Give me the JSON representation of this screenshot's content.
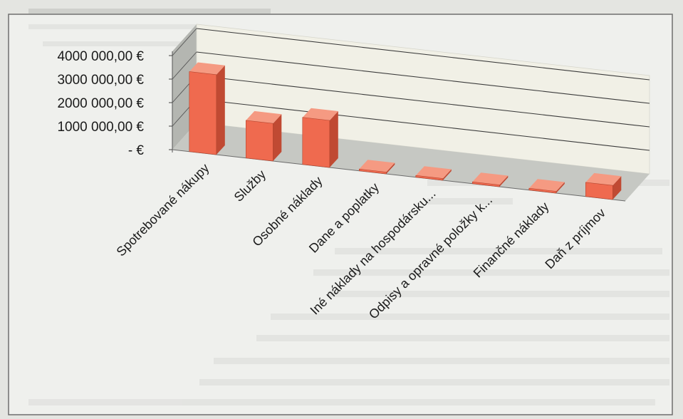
{
  "chart_data": {
    "type": "bar",
    "categories": [
      "Spotrebované nákupy",
      "Služby",
      "Osobné náklady",
      "Dane a poplatky",
      "Iné náklady na hospodársku...",
      "Odpisy a opravné položky k...",
      "Finančné náklady",
      "Daň z príjmov"
    ],
    "values": [
      3400000,
      1600000,
      2000000,
      0,
      0,
      60000,
      0,
      600000
    ],
    "ylim": [
      0,
      4000000
    ],
    "y_ticks": [
      "4000 000,00 €",
      "3000 000,00 €",
      "2000 000,00 €",
      "1000 000,00 €",
      "-  €"
    ],
    "grid": true,
    "legend": "none",
    "style": "3d-column",
    "colors": {
      "bar_front": "#ef6a4f",
      "bar_side": "#c04a33",
      "bar_top": "#f59a82",
      "back_wall": "#f1f0e6",
      "side_wall": "#b4b6b1",
      "floor": "#c6c8c3"
    }
  }
}
